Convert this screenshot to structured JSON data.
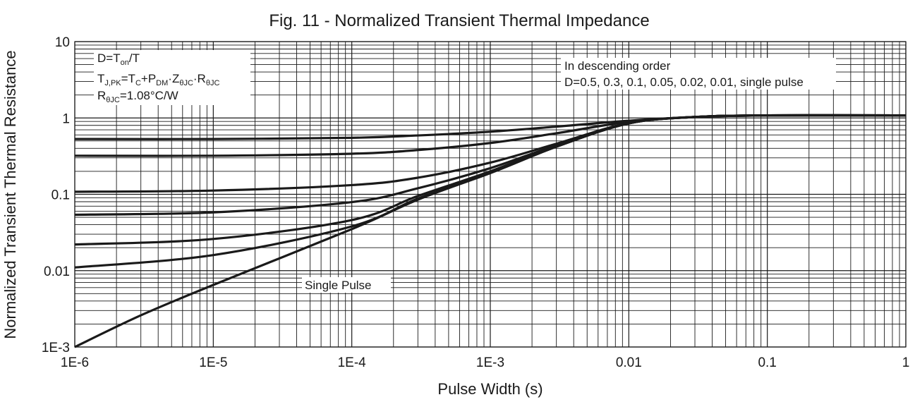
{
  "chart_data": {
    "type": "line",
    "title": "Fig. 11 - Normalized Transient Thermal Impedance",
    "xlabel": "Pulse Width (s)",
    "ylabel": "Normalized Transient Thermal Resistance",
    "x_scale": "log",
    "y_scale": "log",
    "xlim": [
      1e-06,
      1
    ],
    "ylim": [
      0.001,
      10
    ],
    "grid": true,
    "x_ticks": [
      {
        "value": 1e-06,
        "label": "1E-6"
      },
      {
        "value": 1e-05,
        "label": "1E-5"
      },
      {
        "value": 0.0001,
        "label": "1E-4"
      },
      {
        "value": 0.001,
        "label": "1E-3"
      },
      {
        "value": 0.01,
        "label": "0.01"
      },
      {
        "value": 0.1,
        "label": "0.1"
      },
      {
        "value": 1,
        "label": "1"
      }
    ],
    "y_ticks": [
      {
        "value": 10,
        "label": "10"
      },
      {
        "value": 1,
        "label": "1"
      },
      {
        "value": 0.1,
        "label": "0.1"
      },
      {
        "value": 0.01,
        "label": "0.01"
      },
      {
        "value": 0.001,
        "label": "1E-3"
      }
    ],
    "series_color": "#1a1a1a",
    "series": [
      {
        "x": [
          1e-06,
          1e-05,
          0.0001,
          0.0003,
          0.001,
          0.003,
          0.01,
          0.03,
          0.1,
          1
        ],
        "y": [
          0.53,
          0.53,
          0.55,
          0.59,
          0.66,
          0.77,
          0.92,
          1.03,
          1.08,
          1.08
        ]
      },
      {
        "x": [
          1e-06,
          1e-05,
          0.0001,
          0.0003,
          0.001,
          0.003,
          0.01,
          0.03,
          0.1,
          1
        ],
        "y": [
          0.32,
          0.32,
          0.34,
          0.38,
          0.47,
          0.63,
          0.89,
          1.03,
          1.08,
          1.08
        ]
      },
      {
        "x": [
          1e-06,
          1e-05,
          0.0001,
          0.0003,
          0.001,
          0.003,
          0.01,
          0.03,
          0.1,
          1
        ],
        "y": [
          0.108,
          0.112,
          0.132,
          0.165,
          0.26,
          0.46,
          0.86,
          1.03,
          1.08,
          1.08
        ]
      },
      {
        "x": [
          1e-06,
          1e-05,
          0.0001,
          0.0003,
          0.001,
          0.003,
          0.01,
          0.03,
          0.1,
          1
        ],
        "y": [
          0.054,
          0.058,
          0.079,
          0.12,
          0.22,
          0.44,
          0.85,
          1.03,
          1.08,
          1.08
        ]
      },
      {
        "x": [
          1e-06,
          1e-05,
          0.0001,
          0.0003,
          0.001,
          0.003,
          0.01,
          0.03,
          0.1,
          1
        ],
        "y": [
          0.022,
          0.026,
          0.046,
          0.095,
          0.2,
          0.43,
          0.85,
          1.03,
          1.08,
          1.08
        ]
      },
      {
        "x": [
          1e-06,
          1e-05,
          0.0001,
          0.0003,
          0.001,
          0.003,
          0.01,
          0.03,
          0.1,
          1
        ],
        "y": [
          0.011,
          0.016,
          0.038,
          0.088,
          0.19,
          0.42,
          0.85,
          1.03,
          1.08,
          1.08
        ]
      },
      {
        "x": [
          1e-06,
          3e-06,
          1e-05,
          0.0001,
          0.0003,
          0.001,
          0.003,
          0.01,
          0.03,
          0.1,
          1
        ],
        "y": [
          0.001,
          0.0026,
          0.0065,
          0.035,
          0.085,
          0.19,
          0.42,
          0.85,
          1.03,
          1.08,
          1.08
        ]
      }
    ],
    "annotations": {
      "formula_d": {
        "a": "D=T",
        "a_sub": "on",
        "b": "/T"
      },
      "formula_tj": {
        "a": "T",
        "a_sub": "J,PK",
        "b": "=T",
        "b_sub": "C",
        "c": "+P",
        "c_sub": "DM",
        "d": "·Z",
        "d_sub": "θJC",
        "e": "·R",
        "e_sub": "θJC"
      },
      "formula_r": {
        "a": "R",
        "a_sub": "θJC",
        "b": "=1.08°C/W"
      },
      "order_line1": "In descending order",
      "order_line2": "D=0.5, 0.3, 0.1, 0.05, 0.02, 0.01, single pulse",
      "single_pulse": "Single Pulse"
    }
  }
}
